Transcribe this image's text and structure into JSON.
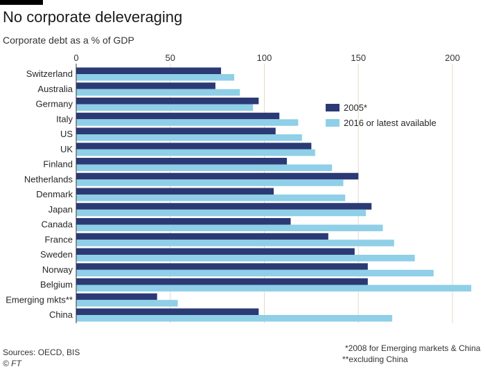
{
  "chart_data": {
    "type": "bar",
    "orientation": "horizontal",
    "title": "No corporate deleveraging",
    "subtitle": "Corporate debt as a % of GDP",
    "categories": [
      "Switzerland",
      "Australia",
      "Germany",
      "Italy",
      "US",
      "UK",
      "Finland",
      "Netherlands",
      "Denmark",
      "Japan",
      "Canada",
      "France",
      "Sweden",
      "Norway",
      "Belgium",
      "Emerging mkts**",
      "China"
    ],
    "series": [
      {
        "name": "2005*",
        "color": "#2b3a75",
        "values": [
          77,
          74,
          97,
          108,
          106,
          125,
          112,
          150,
          105,
          157,
          114,
          134,
          148,
          155,
          155,
          43,
          97
        ]
      },
      {
        "name": "2016 or latest available",
        "color": "#8fcfe7",
        "values": [
          84,
          87,
          94,
          118,
          120,
          127,
          136,
          142,
          143,
          154,
          163,
          169,
          180,
          190,
          210,
          54,
          168
        ]
      }
    ],
    "xlim": [
      0,
      210
    ],
    "xticks": [
      0,
      50,
      100,
      150,
      200
    ],
    "grid": true,
    "legend": "top-right",
    "source": "Sources: OECD, BIS",
    "credit": "© FT",
    "footnotes": [
      "*2008 for Emerging markets & China",
      "**excluding China"
    ]
  }
}
